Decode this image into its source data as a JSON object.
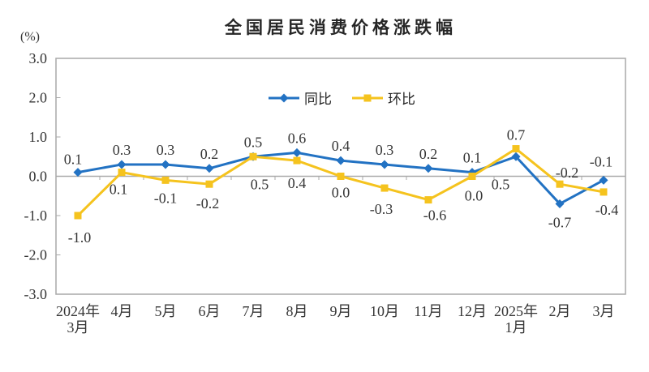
{
  "title": "全国居民消费价格涨跌幅",
  "y_axis_unit": "(%)",
  "chart_data": {
    "type": "line",
    "categories": [
      [
        "2024年",
        "3月"
      ],
      [
        "4月"
      ],
      [
        "5月"
      ],
      [
        "6月"
      ],
      [
        "7月"
      ],
      [
        "8月"
      ],
      [
        "9月"
      ],
      [
        "10月"
      ],
      [
        "11月"
      ],
      [
        "12月"
      ],
      [
        "2025年",
        "1月"
      ],
      [
        "2月"
      ],
      [
        "3月"
      ]
    ],
    "series": [
      {
        "name": "同比",
        "color": "#2272C3",
        "marker": "diamond",
        "values": [
          0.1,
          0.3,
          0.3,
          0.2,
          0.5,
          0.6,
          0.4,
          0.3,
          0.2,
          0.1,
          0.5,
          -0.7,
          -0.1
        ],
        "label_offsets": [
          [
            -6,
            -10
          ],
          [
            0,
            -12
          ],
          [
            0,
            -12
          ],
          [
            0,
            -12
          ],
          [
            0,
            -12
          ],
          [
            0,
            -12
          ],
          [
            0,
            -12
          ],
          [
            0,
            -12
          ],
          [
            0,
            -12
          ],
          [
            0,
            -12
          ],
          [
            -19,
            40
          ],
          [
            0,
            29
          ],
          [
            -3,
            -17
          ]
        ]
      },
      {
        "name": "环比",
        "color": "#F5C31E",
        "marker": "square",
        "values": [
          -1.0,
          0.1,
          -0.1,
          -0.2,
          0.5,
          0.4,
          0.0,
          -0.3,
          -0.6,
          0.0,
          0.7,
          -0.2,
          -0.4
        ],
        "label_offsets": [
          [
            2,
            33
          ],
          [
            -4,
            27
          ],
          [
            0,
            28
          ],
          [
            -2,
            30
          ],
          [
            8,
            40
          ],
          [
            0,
            34
          ],
          [
            0,
            26
          ],
          [
            -4,
            32
          ],
          [
            8,
            25
          ],
          [
            2,
            30
          ],
          [
            0,
            -11
          ],
          [
            9,
            -8
          ],
          [
            4,
            28
          ]
        ]
      }
    ],
    "ylim": [
      -3.0,
      3.0
    ],
    "y_ticks": [
      "3.0",
      "2.0",
      "1.0",
      "0.0",
      "-1.0",
      "-2.0",
      "-3.0"
    ],
    "grid": "zero-line-only",
    "legend_position": "top-center-inside",
    "axis_color": "#A9A9A9",
    "text_color": "#363636",
    "label_decimals": 1
  }
}
